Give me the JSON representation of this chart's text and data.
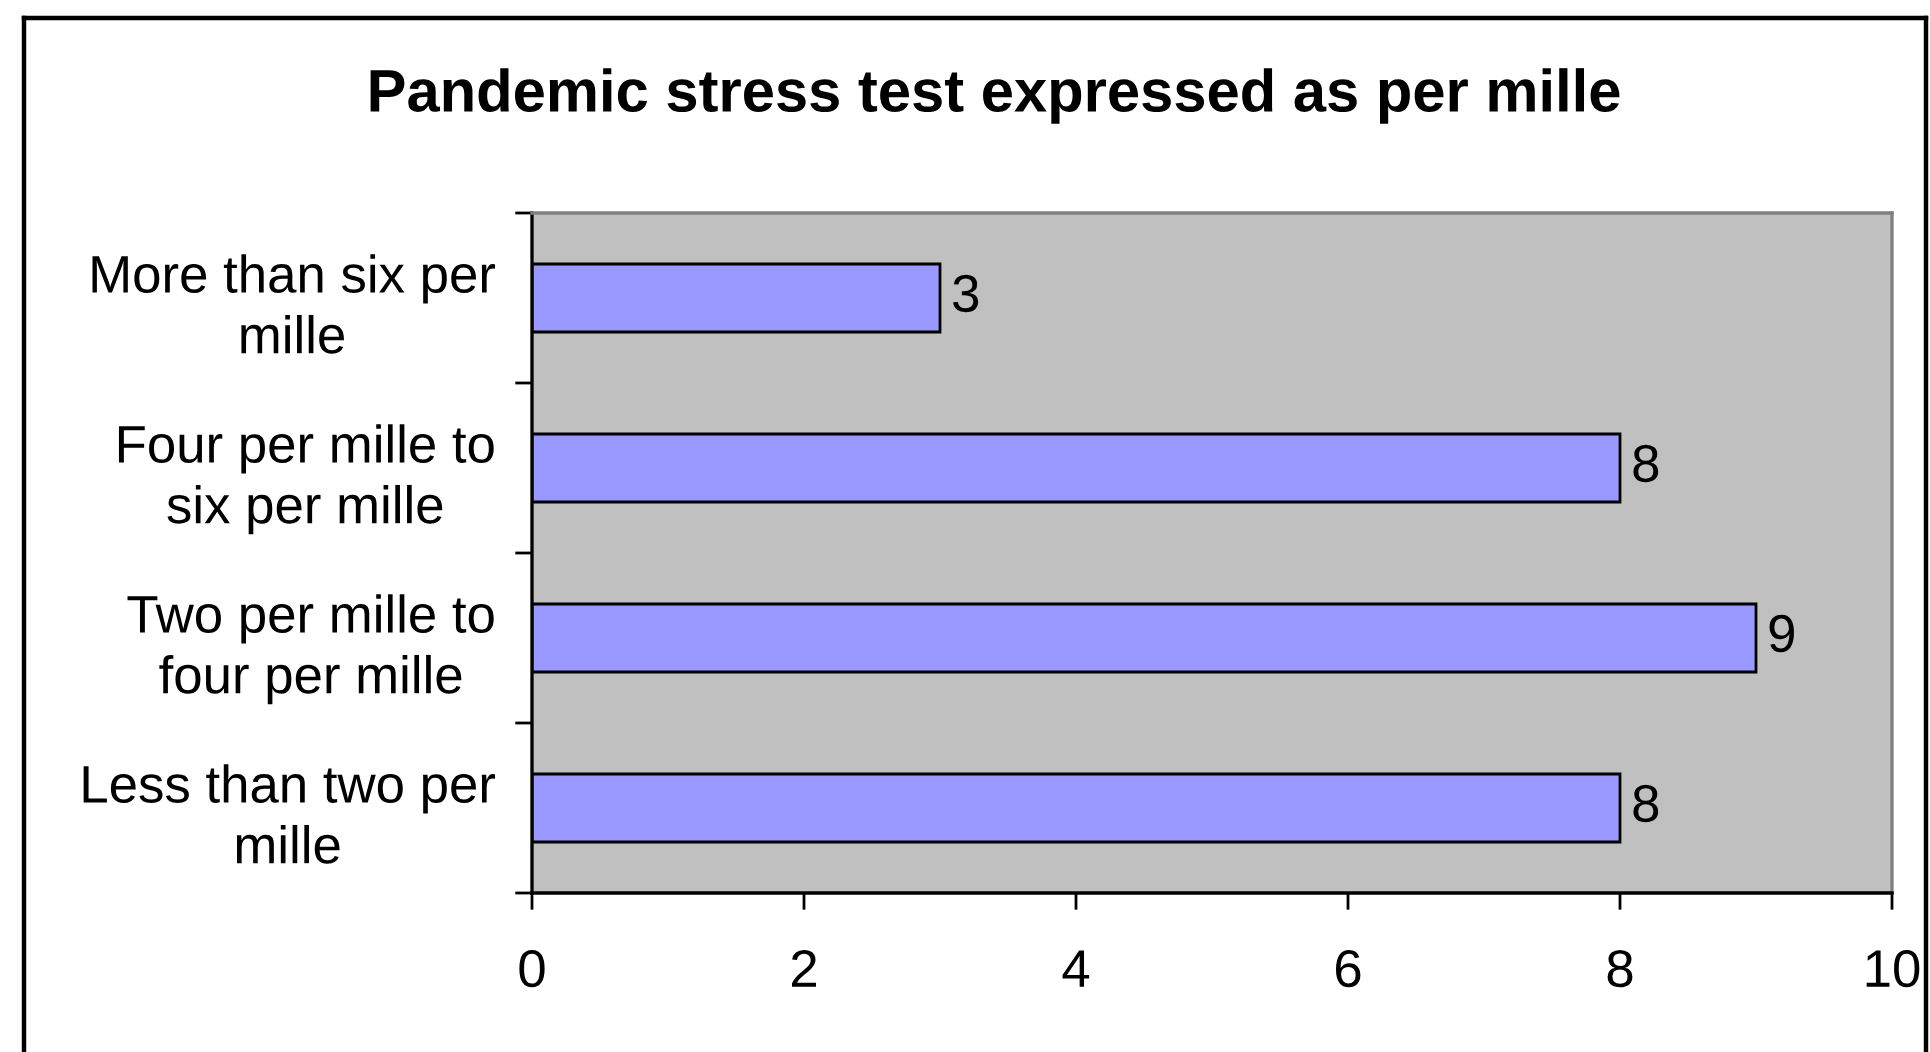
{
  "chart_data": {
    "type": "bar",
    "orientation": "horizontal",
    "title": "Pandemic stress test expressed as per mille",
    "categories": [
      "More than six per\nmille",
      "Four per mille to\nsix per mille",
      "Two per mille to\nfour per mille",
      "Less than two per\nmille"
    ],
    "values": [
      3,
      8,
      9,
      8
    ],
    "color": "#9999ff",
    "xlim": [
      0,
      10
    ],
    "xticks": [
      0,
      2,
      4,
      6,
      8,
      10
    ],
    "data_labels": true
  }
}
